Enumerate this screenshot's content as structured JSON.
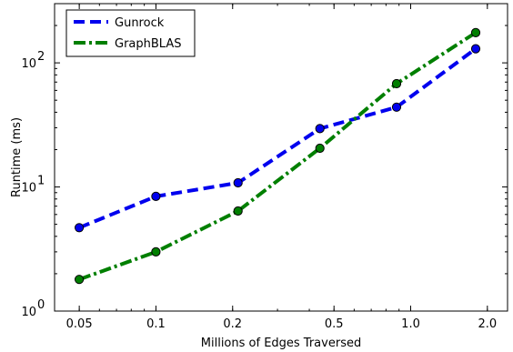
{
  "chart_data": {
    "type": "line",
    "xlabel": "Millions of Edges Traversed",
    "ylabel": "Runtime (ms)",
    "xscale": "log",
    "yscale": "log",
    "xlim": [
      0.04,
      2.4
    ],
    "ylim": [
      1,
      300
    ],
    "grid": false,
    "legend_position": "top-left",
    "xticks": [
      {
        "value": 0.05,
        "label": "0.05"
      },
      {
        "value": 0.1,
        "label": "0.1"
      },
      {
        "value": 0.2,
        "label": "0.2"
      },
      {
        "value": 0.5,
        "label": "0.5"
      },
      {
        "value": 1.0,
        "label": "1.0"
      },
      {
        "value": 2.0,
        "label": "2.0"
      }
    ],
    "yticks": [
      {
        "value": 1,
        "base": "10",
        "exp": "0"
      },
      {
        "value": 10,
        "base": "10",
        "exp": "1"
      },
      {
        "value": 100,
        "base": "10",
        "exp": "2"
      }
    ],
    "series": [
      {
        "name": "Gunrock",
        "color": "#0000ee",
        "style": "dashed",
        "x": [
          0.05,
          0.1,
          0.21,
          0.44,
          0.88,
          1.8
        ],
        "y": [
          4.7,
          8.4,
          10.8,
          29.5,
          44.0,
          130.0
        ]
      },
      {
        "name": "GraphBLAS",
        "color": "#007f00",
        "style": "dash-dot",
        "x": [
          0.05,
          0.1,
          0.21,
          0.44,
          0.88,
          1.8
        ],
        "y": [
          1.8,
          3.0,
          6.4,
          20.5,
          68.0,
          175.0
        ]
      }
    ]
  }
}
